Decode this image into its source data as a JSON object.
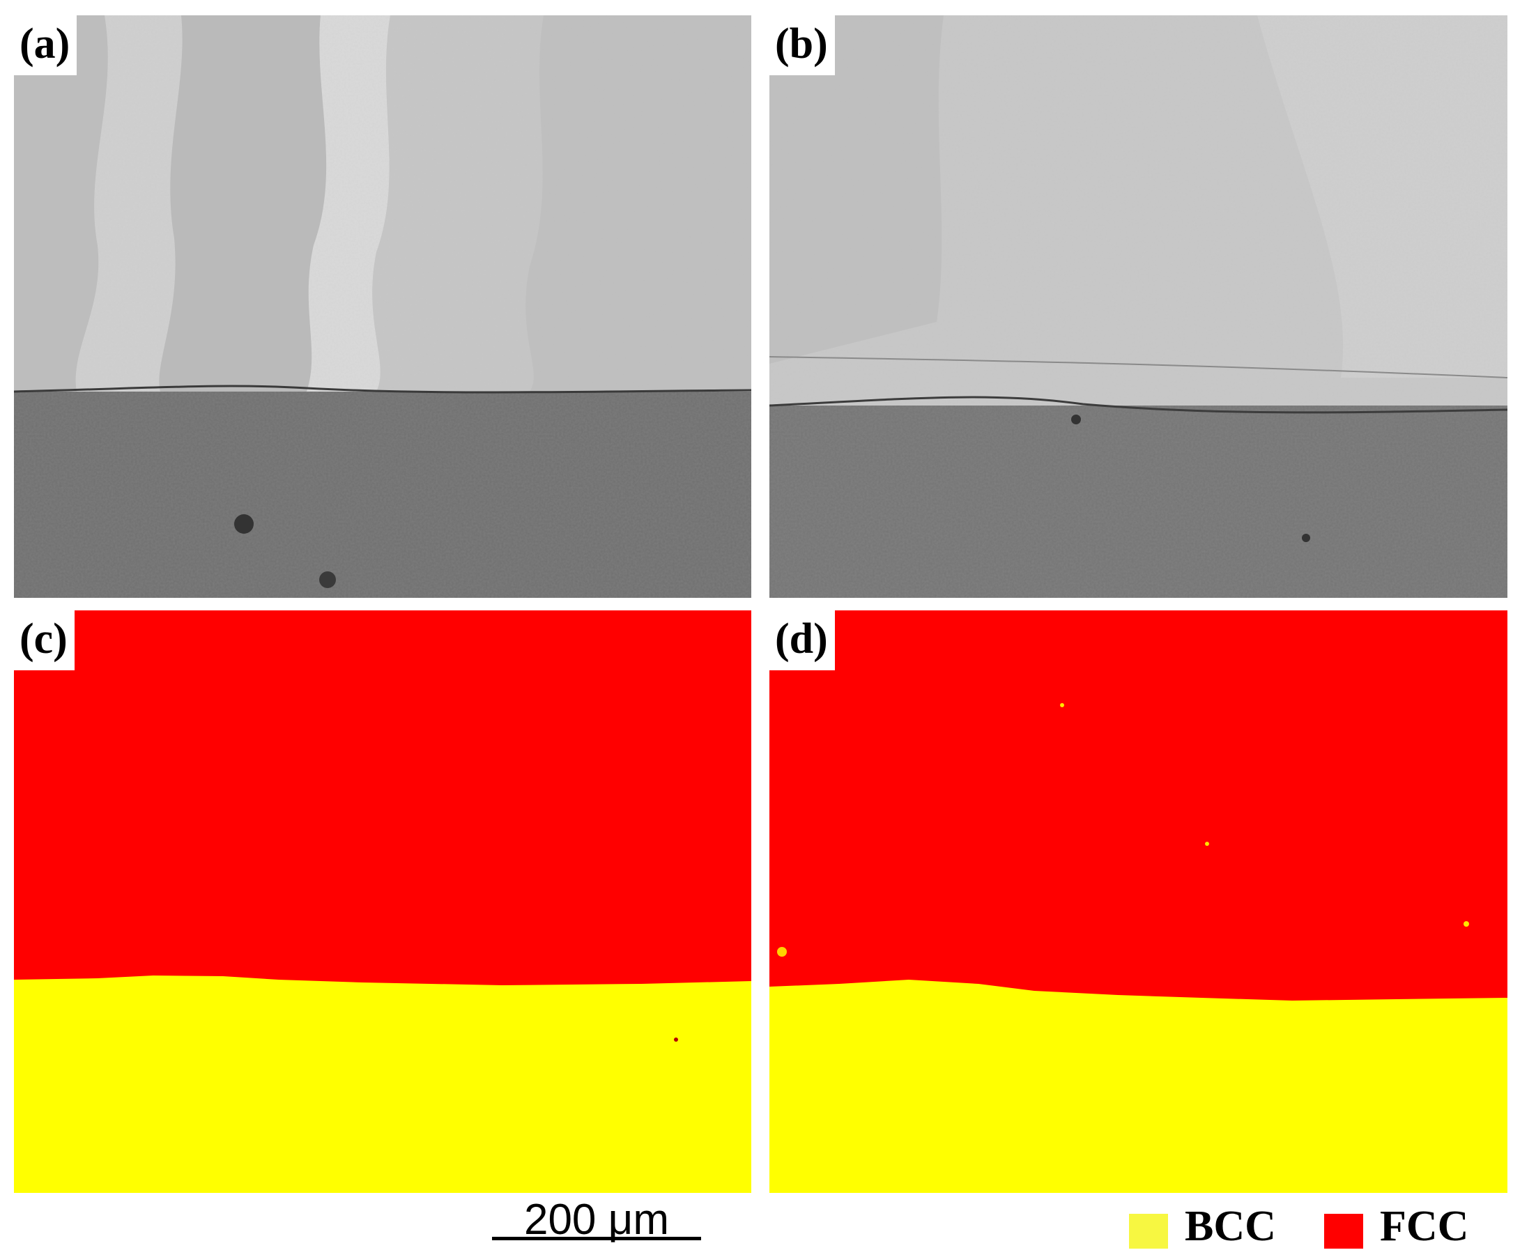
{
  "panels": {
    "a": {
      "label": "(a)"
    },
    "b": {
      "label": "(b)"
    },
    "c": {
      "label": "(c)"
    },
    "d": {
      "label": "(d)"
    }
  },
  "scale_bar": {
    "label": "200 μm"
  },
  "legend": {
    "items": [
      {
        "label": "BCC",
        "color": "#f7f741"
      },
      {
        "label": "FCC",
        "color": "#ff0000"
      }
    ]
  },
  "colors": {
    "fcc_phase": "#ff0000",
    "bcc_phase": "#ffff00",
    "upper_micrograph": "#c4c4c4",
    "lower_micrograph": "#6e6e6e"
  }
}
